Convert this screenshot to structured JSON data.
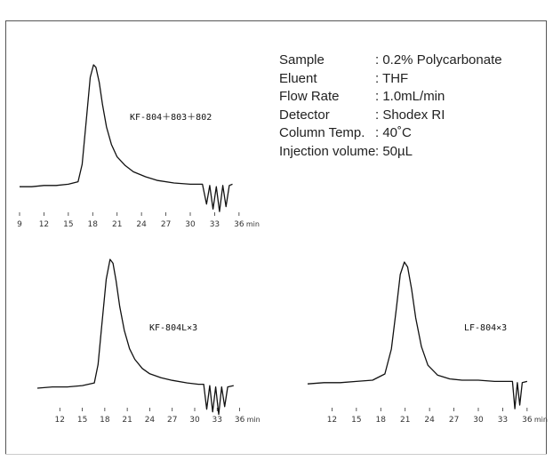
{
  "conditions": [
    {
      "label": "Sample",
      "value": ": 0.2% Polycarbonate"
    },
    {
      "label": "Eluent",
      "value": ": THF"
    },
    {
      "label": "Flow Rate",
      "value": ": 1.0mL/min"
    },
    {
      "label": "Detector",
      "value": ": Shodex RI"
    },
    {
      "label": "Column Temp.",
      "value": ": 40˚C"
    },
    {
      "label": "Injection volume",
      "value": ": 50µL"
    }
  ],
  "chart_data": [
    {
      "type": "line",
      "series": [
        {
          "name": "KF-804＋803＋802"
        }
      ],
      "x_ticks": [
        "9",
        "12",
        "15",
        "18",
        "21",
        "24",
        "27",
        "30",
        "33",
        "36"
      ],
      "x_unit": "min",
      "xlim": [
        9,
        37
      ],
      "baseline_x": [
        9,
        10.5,
        12,
        13.5,
        15,
        16.2,
        16.7,
        17.2,
        17.7,
        18.1,
        18.4,
        18.8,
        19.2,
        19.7,
        20.3,
        21,
        22,
        23,
        24.5,
        26,
        28,
        30,
        31.5,
        32,
        32.4,
        32.8,
        33.2,
        33.6,
        34.0,
        34.4,
        34.8,
        35.2
      ],
      "baseline_y": [
        0.02,
        0.02,
        0.03,
        0.03,
        0.04,
        0.06,
        0.2,
        0.55,
        0.9,
        1.0,
        0.98,
        0.86,
        0.68,
        0.5,
        0.36,
        0.26,
        0.19,
        0.14,
        0.1,
        0.07,
        0.05,
        0.04,
        0.04,
        -0.12,
        0.03,
        -0.16,
        0.02,
        -0.18,
        0.03,
        -0.14,
        0.03,
        0.04
      ]
    },
    {
      "type": "line",
      "series": [
        {
          "name": "KF-804L×3"
        }
      ],
      "x_ticks": [
        "12",
        "15",
        "18",
        "21",
        "24",
        "27",
        "30",
        "33",
        "36"
      ],
      "x_unit": "min",
      "xlim": [
        9,
        37
      ],
      "baseline_x": [
        9,
        11,
        13,
        15,
        16.6,
        17.1,
        17.6,
        18.2,
        18.7,
        19.1,
        19.5,
        20.0,
        20.6,
        21.3,
        22,
        23,
        24,
        25.5,
        27,
        29,
        30.5,
        31.2,
        31.6,
        32.0,
        32.4,
        32.8,
        33.2,
        33.6,
        34.0,
        34.4,
        35.2
      ],
      "baseline_y": [
        0.02,
        0.03,
        0.03,
        0.04,
        0.06,
        0.2,
        0.5,
        0.85,
        1.0,
        0.97,
        0.84,
        0.64,
        0.46,
        0.32,
        0.24,
        0.17,
        0.13,
        0.1,
        0.08,
        0.06,
        0.05,
        0.05,
        -0.14,
        0.04,
        -0.16,
        0.03,
        -0.18,
        0.03,
        -0.12,
        0.03,
        0.04
      ]
    },
    {
      "type": "line",
      "series": [
        {
          "name": "LF-804×3"
        }
      ],
      "x_ticks": [
        "12",
        "15",
        "18",
        "21",
        "24",
        "27",
        "30",
        "33",
        "36"
      ],
      "x_unit": "min",
      "xlim": [
        9,
        37
      ],
      "baseline_x": [
        9,
        11,
        13,
        15,
        17,
        18.5,
        19.3,
        19.9,
        20.4,
        20.9,
        21.3,
        21.8,
        22.3,
        23,
        23.8,
        25,
        26.5,
        28,
        30,
        32,
        33.5,
        34.2,
        34.5,
        34.8,
        35.1,
        35.4,
        36
      ],
      "baseline_y": [
        0.02,
        0.03,
        0.03,
        0.04,
        0.05,
        0.1,
        0.3,
        0.62,
        0.9,
        1.0,
        0.96,
        0.78,
        0.55,
        0.32,
        0.17,
        0.09,
        0.06,
        0.05,
        0.05,
        0.04,
        0.04,
        0.04,
        -0.18,
        0.03,
        -0.15,
        0.03,
        0.04
      ]
    }
  ]
}
